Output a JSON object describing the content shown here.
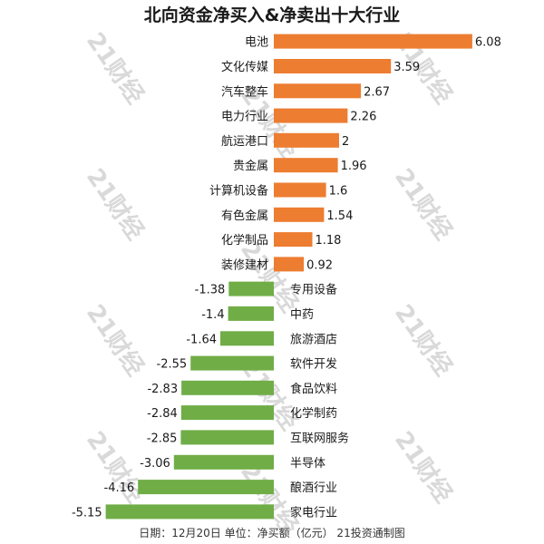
{
  "chart_data": {
    "type": "bar",
    "orientation": "horizontal",
    "title": "北向资金净买入&净卖出十大行业",
    "footer": "日期：12月20日  单位：净买额（亿元）  21投资通制图",
    "watermark": "21财经",
    "categories": [
      "电池",
      "文化传媒",
      "汽车整车",
      "电力行业",
      "航运港口",
      "贵金属",
      "计算机设备",
      "有色金属",
      "化学制品",
      "装修建材",
      "专用设备",
      "中药",
      "旅游酒店",
      "软件开发",
      "食品饮料",
      "化学制药",
      "互联网服务",
      "半导体",
      "酿酒行业",
      "家电行业"
    ],
    "values": [
      6.08,
      3.59,
      2.67,
      2.26,
      2,
      1.96,
      1.6,
      1.54,
      1.18,
      0.92,
      -1.38,
      -1.4,
      -1.64,
      -2.55,
      -2.83,
      -2.84,
      -2.85,
      -3.06,
      -4.16,
      -5.15
    ],
    "value_labels": [
      "6.08",
      "3.59",
      "2.67",
      "2.26",
      "2",
      "1.96",
      "1.6",
      "1.54",
      "1.18",
      "0.92",
      "-1.38",
      "-1.4",
      "-1.64",
      "-2.55",
      "-2.83",
      "-2.84",
      "-2.85",
      "-3.06",
      "-4.16",
      "-5.15"
    ],
    "colors": {
      "positive": "#ED7D31",
      "negative": "#70AD47"
    },
    "grid": false,
    "legend": "none"
  }
}
